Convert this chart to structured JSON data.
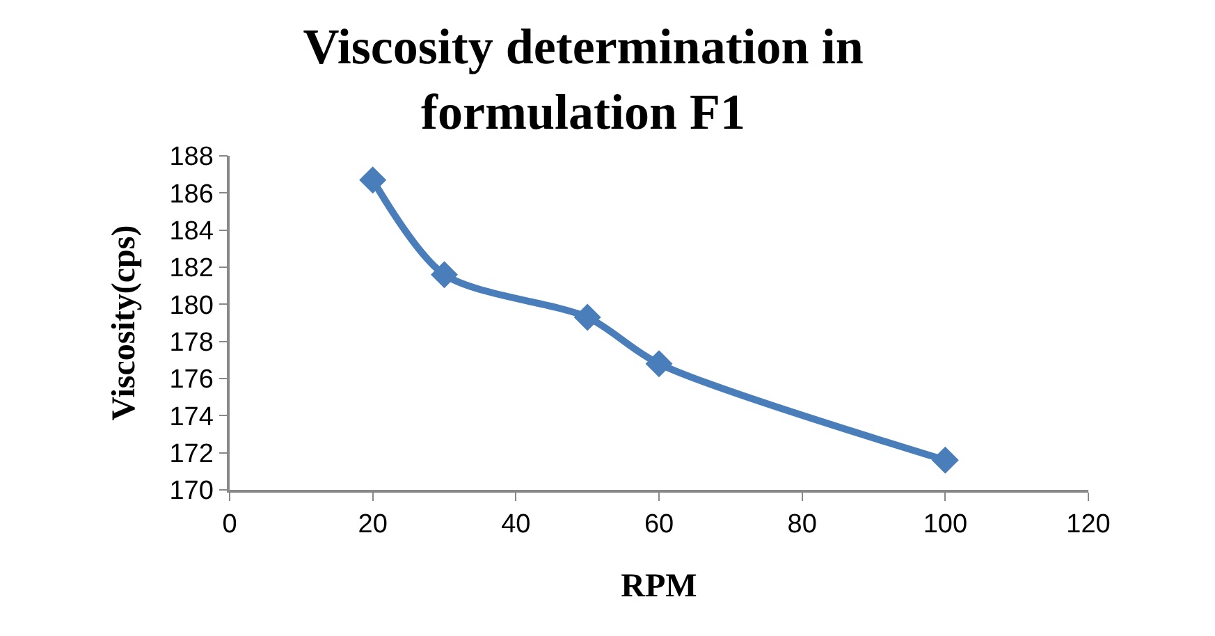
{
  "chart_data": {
    "type": "line",
    "title": "Viscosity determination in formulation F1",
    "xlabel": "RPM",
    "ylabel": "Viscosity(cps)",
    "x": [
      20,
      30,
      50,
      60,
      100
    ],
    "series": [
      {
        "color": "#4a7ebb",
        "values": [
          186.7,
          181.6,
          179.3,
          176.8,
          171.6
        ]
      }
    ],
    "xlim": [
      0,
      120
    ],
    "xticks": [
      0,
      20,
      40,
      60,
      80,
      100,
      120
    ],
    "ylim": [
      170,
      188
    ],
    "yticks": [
      170,
      172,
      174,
      176,
      178,
      180,
      182,
      184,
      186,
      188
    ],
    "grid": false,
    "marker": "diamond",
    "line_style": "solid"
  }
}
